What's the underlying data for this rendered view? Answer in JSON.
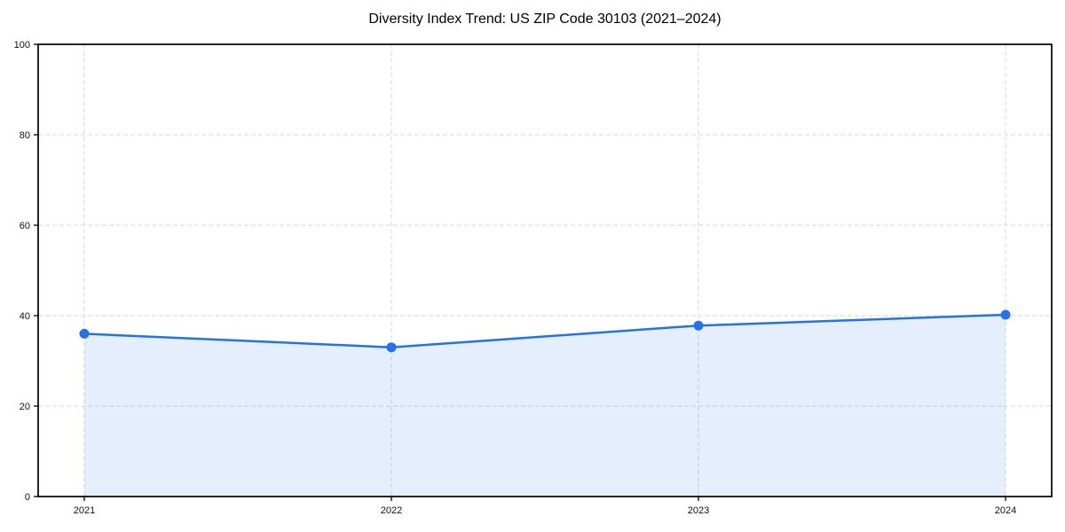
{
  "title": "Diversity Index Trend: US ZIP Code 30103 (2021–2024)",
  "chart_data": {
    "type": "area",
    "title": "Diversity Index Trend: US ZIP Code 30103 (2021–2024)",
    "categories": [
      "2021",
      "2022",
      "2023",
      "2024"
    ],
    "series": [
      {
        "name": "Diversity Index",
        "values": [
          36,
          33,
          37.8,
          40.2
        ]
      }
    ],
    "xlabel": "",
    "ylabel": "",
    "ylim": [
      0,
      100
    ],
    "yticks": [
      0,
      20,
      40,
      60,
      80,
      100
    ],
    "grid": true,
    "grid_style": "dashed",
    "legend_position": "none",
    "marker": "circle",
    "fill_to_baseline": 0,
    "colors": {
      "line": "#2372e8",
      "marker": "#2372e8",
      "fill": "rgba(35,114,232,0.12)",
      "grid": "#dedede",
      "axis": "#000000",
      "tick_label": "#111111",
      "title": "#000000",
      "background": "#ffffff"
    }
  }
}
